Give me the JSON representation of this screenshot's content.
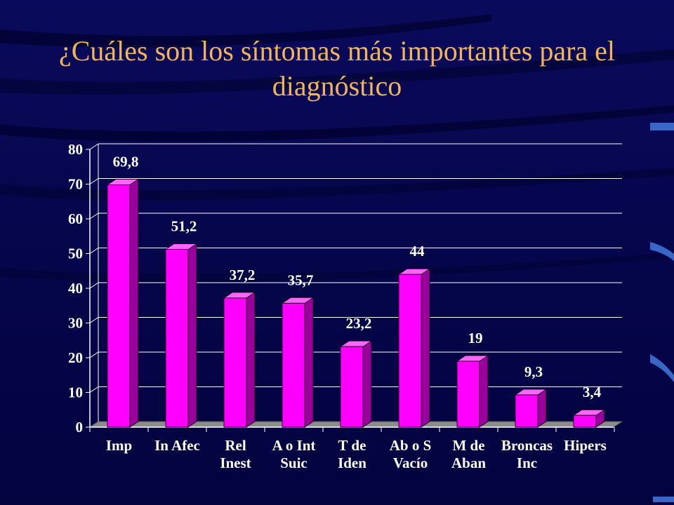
{
  "slide": {
    "title": "¿Cuáles son los síntomas más importantes para el diagnóstico",
    "colors": {
      "background": "#06064e",
      "title": "#f0b45a",
      "bar_front": "#ff00ff",
      "bar_side": "#9c009c",
      "bar_top": "#ff66ff",
      "floor": "#8c8c8c"
    }
  },
  "chart_data": {
    "type": "bar",
    "categories": [
      [
        "Imp"
      ],
      [
        "In Afec"
      ],
      [
        "Rel",
        "Inest"
      ],
      [
        "A o Int",
        "Suic"
      ],
      [
        "T de",
        "Iden"
      ],
      [
        "Ab o S",
        "Vacío"
      ],
      [
        "M de",
        "Aban"
      ],
      [
        "Broncas",
        "Inc"
      ],
      [
        "Hipers"
      ]
    ],
    "values": [
      69.8,
      51.2,
      37.2,
      35.7,
      23.2,
      44,
      19,
      9.3,
      3.4
    ],
    "data_labels": [
      "69,8",
      "51,2",
      "37,2",
      "35,7",
      "23,2",
      "44",
      "19",
      "9,3",
      "3,4"
    ],
    "y_ticks": [
      "0",
      "10",
      "20",
      "30",
      "40",
      "50",
      "60",
      "70",
      "80"
    ],
    "ylim": [
      0,
      80
    ],
    "grid": true,
    "style": "3d-column"
  }
}
